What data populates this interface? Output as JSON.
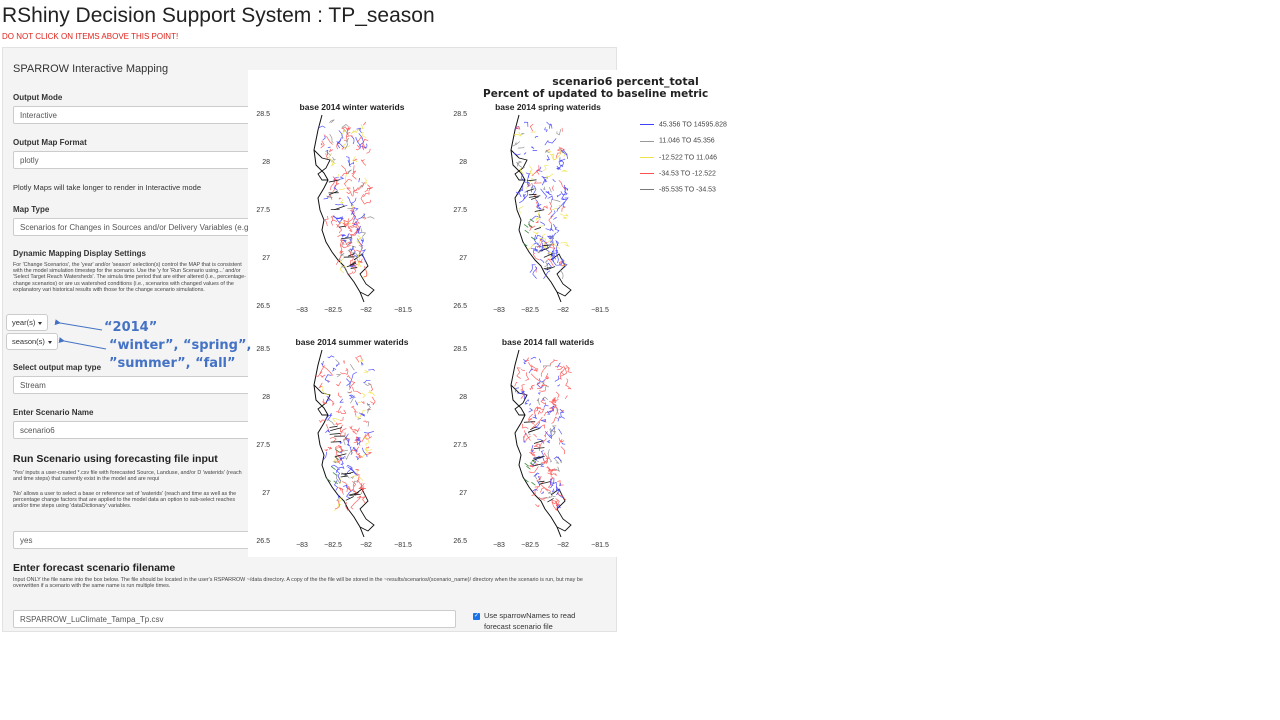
{
  "app": {
    "title": "RShiny Decision Support System : TP_season",
    "warning": "DO NOT CLICK ON ITEMS ABOVE THIS POINT!"
  },
  "panel": {
    "title": "SPARROW Interactive Mapping",
    "output_mode": {
      "label": "Output Mode",
      "value": "Interactive"
    },
    "output_map_format": {
      "label": "Output Map Format",
      "value": "plotly"
    },
    "plotly_note": "Plotly Maps will take longer to render in Interactive mode",
    "map_type": {
      "label": "Map Type",
      "value": "Scenarios for Changes in Sources and/or Delivery Variables (e.g."
    },
    "dynamic": {
      "label": "Dynamic Mapping Display Settings",
      "help": "For 'Change Scenarios', the 'year' and/or 'season' selection(s) control the MAP that is consistent with the model simulation timestep for the scenario. Use the 'y for 'Run Scenario using...' and/or 'Select Target Reach Watersheds'. The simula time period that are either altered (i.e., percentage-change scenarios) or are us watershed conditions (i.e., scenarios with changed values of the explanatory vari historical results with those for the change scenario simulations.",
      "year_button": "year(s)",
      "season_button": "season(s)"
    },
    "output_map_type": {
      "label": "Select output map type",
      "value": "Stream"
    },
    "scenario_name": {
      "label": "Enter Scenario Name",
      "value": "scenario6"
    },
    "run_scenario": {
      "header": "Run Scenario using forecasting file input",
      "help_yes": "'Yes' inputs a user-created *.csv file with forecasted Source, Landuse, and/or D 'waterids' (reach and time steps) that currently exist in the model and are requi",
      "help_no": "'No' allows a user to select a base or reference set of 'waterids' (reach and time as well as the percentage change factors that are applied to the model data an option to sub-select reaches and/or time steps using 'dataDictionary' variables.",
      "value": "yes"
    },
    "forecast": {
      "header": "Enter forecast scenario filename",
      "help": "Input ONLY the file name into the box below. The file should be located in the user's RSPARROW ~/data directory. A copy of the the file will be stored in the ~results/scenarios/(scenario_name)/ directory when the scenario is run, but may be overwritten if a scenario with the same name is run multiple times.",
      "value": "RSPARROW_LuClimate_Tampa_Tp.csv",
      "checkbox_label_1": "Use sparrowNames to read",
      "checkbox_label_2": "forecast scenario file"
    }
  },
  "annotations": {
    "year": "“2014”",
    "season_1": "“winter”, “spring”,",
    "season_2": "”summer”, “fall”"
  },
  "map_figure": {
    "title_1": "scenario6 percent_total",
    "title_2": "Percent of updated to baseline metric",
    "panels": [
      {
        "title": "base 2014 winter waterids"
      },
      {
        "title": "base 2014 spring waterids"
      },
      {
        "title": "base 2014 summer waterids"
      },
      {
        "title": "base 2014 fall waterids"
      }
    ],
    "y_ticks": [
      "28.5",
      "28",
      "27.5",
      "27",
      "26.5"
    ],
    "x_ticks": [
      "−83",
      "−82.5",
      "−82",
      "−81.5"
    ],
    "legend": [
      {
        "label": "45.356 TO 14595.828",
        "color": "#3f3fff"
      },
      {
        "label": "11.046 TO 45.356",
        "color": "#9a9a9a"
      },
      {
        "label": "-12.522 TO 11.046",
        "color": "#f0e24a"
      },
      {
        "label": "-34.53 TO -12.522",
        "color": "#ff5050"
      },
      {
        "label": "-85.535 TO -34.53",
        "color": "#7a7a7a"
      }
    ],
    "mix": [
      [
        "#ff5050",
        "#ff5050",
        "#ff5050",
        "#3f3fff",
        "#f0e24a",
        "#8a8a8a",
        "#ff5050",
        "#3f3fff"
      ],
      [
        "#3f3fff",
        "#3f3fff",
        "#f0e24a",
        "#ff5050",
        "#3f3fff",
        "#f0e24a",
        "#8a8a8a",
        "#3f3fff"
      ],
      [
        "#ff5050",
        "#3f3fff",
        "#ff5050",
        "#ff5050",
        "#f0e24a",
        "#3f3fff",
        "#8a8a8a",
        "#ff5050"
      ],
      [
        "#ff5050",
        "#ff5050",
        "#3f3fff",
        "#ff5050",
        "#3f3fff",
        "#ff5050",
        "#8a8a8a",
        "#3f3fff"
      ]
    ]
  }
}
